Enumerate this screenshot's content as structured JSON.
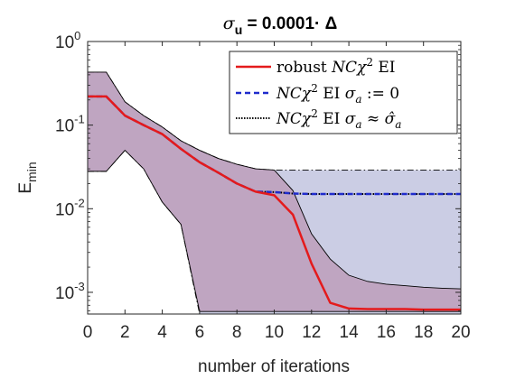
{
  "chart_data": {
    "type": "line",
    "title": "σ_u = 0.0001· Δ",
    "title_parts": {
      "sigma": "σ",
      "sub": "u",
      "rest": " = 0.0001· Δ"
    },
    "xlabel": "number of iterations",
    "ylabel": {
      "main": "E",
      "sub": "min"
    },
    "xlim": [
      0,
      20
    ],
    "ylim": [
      0.00055,
      1
    ],
    "yscale": "log",
    "x_ticks": [
      0,
      2,
      4,
      6,
      8,
      10,
      12,
      14,
      16,
      18,
      20
    ],
    "y_ticks": [
      {
        "value": 1,
        "base": "10",
        "exp": "0"
      },
      {
        "value": 0.1,
        "base": "10",
        "exp": "-1"
      },
      {
        "value": 0.01,
        "base": "10",
        "exp": "-2"
      },
      {
        "value": 0.001,
        "base": "10",
        "exp": "-3"
      }
    ],
    "grid": false,
    "legend_position": "top-right",
    "x": [
      0,
      1,
      2,
      3,
      4,
      5,
      6,
      7,
      8,
      9,
      10,
      11,
      12,
      13,
      14,
      15,
      16,
      17,
      18,
      19,
      20
    ],
    "series": [
      {
        "name": "robust NCχ² EI",
        "legend": {
          "plain1": "robust ",
          "italic": "NCχ",
          "sup": "2",
          "plain2": " EI"
        },
        "color": "#e41a1c",
        "style": "solid",
        "values": [
          0.22,
          0.22,
          0.13,
          0.1,
          0.078,
          0.052,
          0.036,
          0.027,
          0.02,
          0.016,
          0.0145,
          0.0085,
          0.0022,
          0.00075,
          0.00064,
          0.00063,
          0.00063,
          0.00063,
          0.00062,
          0.00062,
          0.00062
        ]
      },
      {
        "name": "NCχ² EI σa := 0",
        "legend": {
          "italic": "NCχ",
          "sup": "2",
          "plain1": " EI ",
          "italic2": "σ",
          "sub": "a",
          "plain2": " := 0"
        },
        "color": "#1f2bcc",
        "style": "dashed",
        "values": [
          0.22,
          0.22,
          0.13,
          0.1,
          0.078,
          0.052,
          0.036,
          0.027,
          0.02,
          0.016,
          0.0158,
          0.0152,
          0.015,
          0.015,
          0.015,
          0.015,
          0.015,
          0.015,
          0.015,
          0.015,
          0.015
        ]
      },
      {
        "name": "NCχ² EI σa ≈ σ̂a",
        "legend": {
          "italic": "NCχ",
          "sup": "2",
          "plain1": " EI ",
          "italic2": "σ",
          "sub": "a",
          "plain2": " ≈ ",
          "italic3": "σ̂",
          "sub2": "a"
        },
        "color": "#000000",
        "style": "dotted",
        "values": [
          0.22,
          0.22,
          0.13,
          0.1,
          0.078,
          0.052,
          0.036,
          0.027,
          0.02,
          0.016,
          0.0158,
          0.0152,
          0.015,
          0.015,
          0.015,
          0.015,
          0.015,
          0.015,
          0.015,
          0.015,
          0.015
        ]
      }
    ],
    "bands": [
      {
        "name": "band-naive",
        "fill": "#a9acd2",
        "edge": "#000000",
        "edge_style": "dashdot",
        "upper": [
          0.43,
          0.43,
          0.19,
          0.13,
          0.095,
          0.065,
          0.05,
          0.04,
          0.034,
          0.03,
          0.029,
          0.029,
          0.029,
          0.029,
          0.029,
          0.029,
          0.029,
          0.029,
          0.029,
          0.029,
          0.029
        ],
        "lower": [
          0.028,
          0.028,
          0.05,
          0.03,
          0.012,
          0.0065,
          0.00055,
          0.00055,
          0.00055,
          0.00055,
          0.00055,
          0.00055,
          0.00055,
          0.00055,
          0.00055,
          0.00055,
          0.00055,
          0.00055,
          0.00055,
          0.00055,
          0.00055
        ]
      },
      {
        "name": "band-robust",
        "fill": "#b78aaa",
        "edge": "#000000",
        "edge_style": "solid",
        "upper": [
          0.43,
          0.43,
          0.19,
          0.13,
          0.095,
          0.065,
          0.05,
          0.04,
          0.034,
          0.03,
          0.029,
          0.0165,
          0.005,
          0.0025,
          0.0016,
          0.00135,
          0.00125,
          0.0012,
          0.00115,
          0.00112,
          0.0011
        ],
        "lower": [
          0.028,
          0.028,
          0.05,
          0.03,
          0.012,
          0.0065,
          0.00059,
          0.00059,
          0.00059,
          0.00059,
          0.00059,
          0.00059,
          0.00059,
          0.00059,
          0.00059,
          0.00059,
          0.00059,
          0.00059,
          0.00059,
          0.00059,
          0.00059
        ]
      }
    ]
  }
}
